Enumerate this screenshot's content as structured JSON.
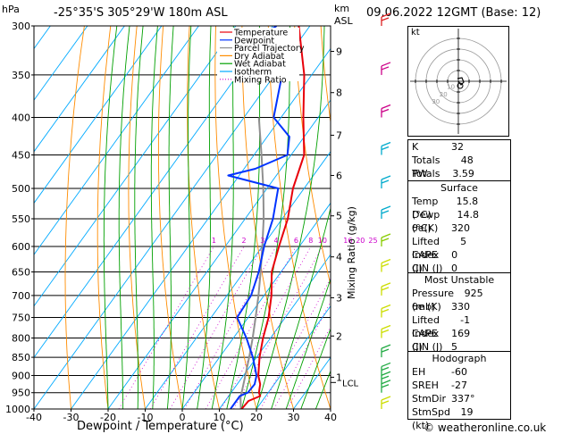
{
  "header": {
    "hpa_label": "hPa",
    "location": "-25°35'S 305°29'W 180m ASL",
    "km_label": "km",
    "asl_label": "ASL",
    "datetime": "09.06.2022 12GMT (Base: 12)"
  },
  "footer": {
    "copyright": "© weatheronline.co.uk"
  },
  "chart_data": {
    "type": "skew-t",
    "xlabel": "Dewpoint / Temperature (°C)",
    "mixing_ratio_axis_label": "Mixing Ratio (g/kg)",
    "x_ticks": [
      -40,
      -30,
      -20,
      -10,
      0,
      10,
      20,
      30,
      40
    ],
    "pressure_ticks": [
      300,
      350,
      400,
      450,
      500,
      550,
      600,
      650,
      700,
      750,
      800,
      850,
      900,
      950,
      1000
    ],
    "km_ticks": [
      {
        "km": "1",
        "p": 905
      },
      {
        "km": "2",
        "p": 795
      },
      {
        "km": "3",
        "p": 705
      },
      {
        "km": "4",
        "p": 620
      },
      {
        "km": "5",
        "p": 545
      },
      {
        "km": "6",
        "p": 480
      },
      {
        "km": "7",
        "p": 423
      },
      {
        "km": "8",
        "p": 370
      },
      {
        "km": "9",
        "p": 325
      }
    ],
    "lcl_label": "LCL",
    "lcl_pressure": 965,
    "mixing_ratio_labels": [
      "1",
      "2",
      "3",
      "4",
      "6",
      "8",
      "10",
      "16",
      "20",
      "25"
    ],
    "mixing_ratio_values": [
      1,
      2,
      3,
      4,
      6,
      8,
      10,
      16,
      20,
      25
    ],
    "legend": [
      {
        "name": "Temperature",
        "color": "#e8000a",
        "style": "solid"
      },
      {
        "name": "Dewpoint",
        "color": "#0033ff",
        "style": "solid"
      },
      {
        "name": "Parcel Trajectory",
        "color": "#909090",
        "style": "solid"
      },
      {
        "name": "Dry Adiabat",
        "color": "#ff8c00",
        "style": "solid"
      },
      {
        "name": "Wet Adiabat",
        "color": "#00a000",
        "style": "solid"
      },
      {
        "name": "Isotherm",
        "color": "#00aaff",
        "style": "solid"
      },
      {
        "name": "Mixing Ratio",
        "color": "#cc00cc",
        "style": "dotted"
      }
    ],
    "temperature": [
      {
        "p": 1000,
        "t": 16.0
      },
      {
        "p": 975,
        "t": 16.3
      },
      {
        "p": 960,
        "t": 18.5
      },
      {
        "p": 950,
        "t": 17.5
      },
      {
        "p": 925,
        "t": 16.2
      },
      {
        "p": 900,
        "t": 14.0
      },
      {
        "p": 850,
        "t": 10.8
      },
      {
        "p": 800,
        "t": 8.0
      },
      {
        "p": 750,
        "t": 5.5
      },
      {
        "p": 700,
        "t": 2.0
      },
      {
        "p": 650,
        "t": -2.5
      },
      {
        "p": 600,
        "t": -5.5
      },
      {
        "p": 550,
        "t": -8.5
      },
      {
        "p": 500,
        "t": -13.0
      },
      {
        "p": 450,
        "t": -16.5
      },
      {
        "p": 400,
        "t": -24.0
      },
      {
        "p": 350,
        "t": -32.0
      },
      {
        "p": 300,
        "t": -43.0
      }
    ],
    "dewpoint": [
      {
        "p": 1000,
        "t": 13.0
      },
      {
        "p": 960,
        "t": 13.0
      },
      {
        "p": 950,
        "t": 14.5
      },
      {
        "p": 925,
        "t": 14.7
      },
      {
        "p": 900,
        "t": 13.5
      },
      {
        "p": 850,
        "t": 9.0
      },
      {
        "p": 800,
        "t": 3.5
      },
      {
        "p": 750,
        "t": -3.0
      },
      {
        "p": 700,
        "t": -3.5
      },
      {
        "p": 650,
        "t": -6.0
      },
      {
        "p": 600,
        "t": -9.5
      },
      {
        "p": 550,
        "t": -12.5
      },
      {
        "p": 500,
        "t": -17.0
      },
      {
        "p": 480,
        "t": -33.0
      },
      {
        "p": 470,
        "t": -27.0
      },
      {
        "p": 450,
        "t": -21.0
      },
      {
        "p": 425,
        "t": -24.0
      },
      {
        "p": 400,
        "t": -32.0
      },
      {
        "p": 350,
        "t": -38.0
      },
      {
        "p": 340,
        "t": -36.0
      },
      {
        "p": 330,
        "t": -55.0
      },
      {
        "p": 300,
        "t": -49.0
      }
    ],
    "parcel": [
      {
        "p": 1000,
        "t": 15.8
      },
      {
        "p": 965,
        "t": 13.5
      },
      {
        "p": 900,
        "t": 10.5
      },
      {
        "p": 850,
        "t": 8.0
      },
      {
        "p": 800,
        "t": 5.2
      },
      {
        "p": 750,
        "t": 2.0
      },
      {
        "p": 700,
        "t": -1.5
      },
      {
        "p": 650,
        "t": -5.5
      },
      {
        "p": 600,
        "t": -10.0
      },
      {
        "p": 550,
        "t": -15.0
      },
      {
        "p": 500,
        "t": -21.0
      },
      {
        "p": 450,
        "t": -28.0
      },
      {
        "p": 400,
        "t": -36.0
      }
    ],
    "wind_barbs": [
      {
        "p": 1000,
        "color": "#ccdd00"
      },
      {
        "p": 950,
        "color": "#22aa44"
      },
      {
        "p": 925,
        "color": "#22aa44"
      },
      {
        "p": 900,
        "color": "#22aa44"
      },
      {
        "p": 850,
        "color": "#22aa44"
      },
      {
        "p": 800,
        "color": "#ccdd00"
      },
      {
        "p": 750,
        "color": "#ccdd00"
      },
      {
        "p": 700,
        "color": "#ccdd00"
      },
      {
        "p": 650,
        "color": "#ccdd00"
      },
      {
        "p": 600,
        "color": "#88cc00"
      },
      {
        "p": 550,
        "color": "#00aacc"
      },
      {
        "p": 500,
        "color": "#00aacc"
      },
      {
        "p": 450,
        "color": "#00aacc"
      },
      {
        "p": 400,
        "color": "#cc0088"
      },
      {
        "p": 350,
        "color": "#cc0088"
      },
      {
        "p": 300,
        "color": "#dd2222"
      }
    ],
    "hodograph": {
      "label": "kt",
      "ring_labels": [
        "10",
        "20",
        "30"
      ]
    }
  },
  "indices": [
    {
      "label": "K",
      "value": "32"
    },
    {
      "label": "Totals Totals",
      "value": "48"
    },
    {
      "label": "PW (cm)",
      "value": "3.59"
    }
  ],
  "surface": {
    "title": "Surface",
    "rows": [
      {
        "label": "Temp (°C)",
        "value": "15.8"
      },
      {
        "label": "Dewp (°C)",
        "value": "14.8"
      },
      {
        "label": "θe(K)",
        "value": "320"
      },
      {
        "label": "Lifted Index",
        "value": "5"
      },
      {
        "label": "CAPE (J)",
        "value": "0"
      },
      {
        "label": "CIN (J)",
        "value": "0"
      }
    ]
  },
  "most_unstable": {
    "title": "Most Unstable",
    "rows": [
      {
        "label": "Pressure (mb)",
        "value": "925"
      },
      {
        "label": "θe (K)",
        "value": "330"
      },
      {
        "label": "Lifted Index",
        "value": "-1"
      },
      {
        "label": "CAPE (J)",
        "value": "169"
      },
      {
        "label": "CIN (J)",
        "value": "5"
      }
    ]
  },
  "hodograph_box": {
    "title": "Hodograph",
    "rows": [
      {
        "label": "EH",
        "value": "-60"
      },
      {
        "label": "SREH",
        "value": "-27"
      },
      {
        "label": "StmDir",
        "value": "337°"
      },
      {
        "label": "StmSpd (kt)",
        "value": "19"
      }
    ]
  }
}
